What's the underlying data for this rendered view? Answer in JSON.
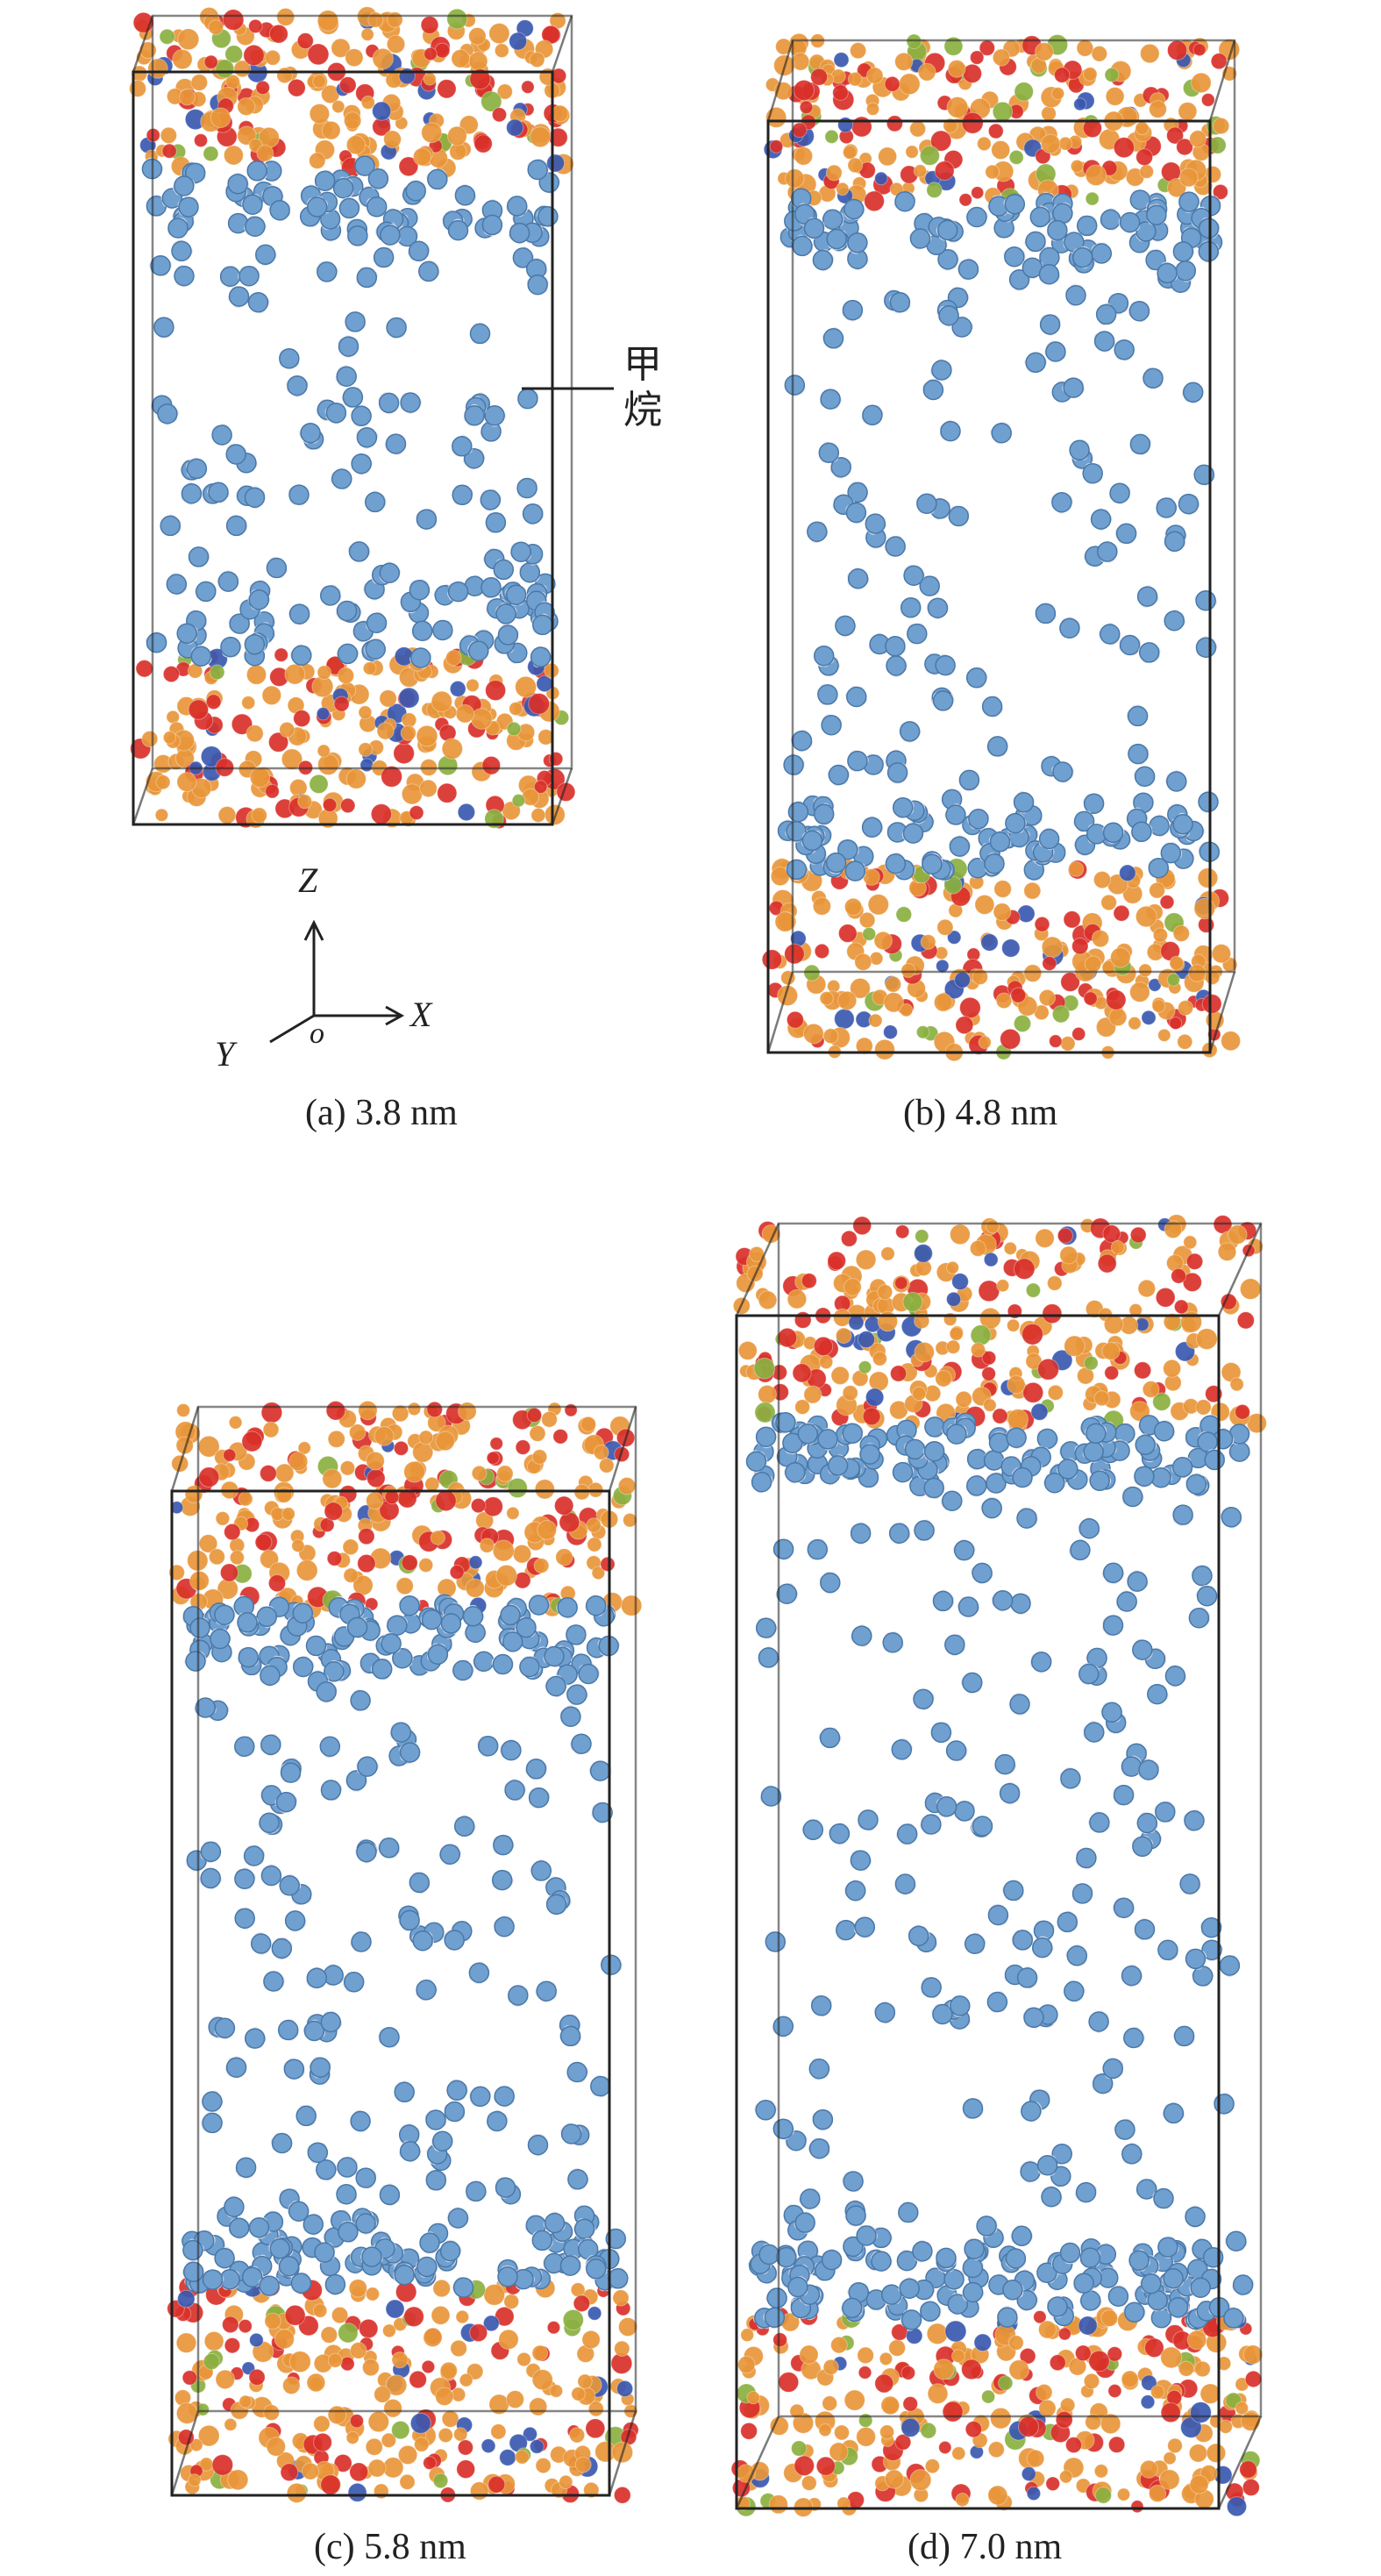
{
  "panels": [
    {
      "caption": "(a) 3.8 nm"
    },
    {
      "caption": "(b) 4.8 nm"
    },
    {
      "caption": "(c) 5.8 nm"
    },
    {
      "caption": "(d) 7.0 nm"
    }
  ],
  "annotation": {
    "line1": "甲",
    "line2": "烷"
  },
  "axes": {
    "z": "Z",
    "x": "X",
    "y": "Y",
    "origin": "o"
  },
  "colors": {
    "methane": "#6fa0d0",
    "wall_orange": "#e8963a",
    "wall_red": "#d9302a",
    "wall_blue": "#3a58b0",
    "wall_green": "#8ab040",
    "box_line": "#222222"
  }
}
